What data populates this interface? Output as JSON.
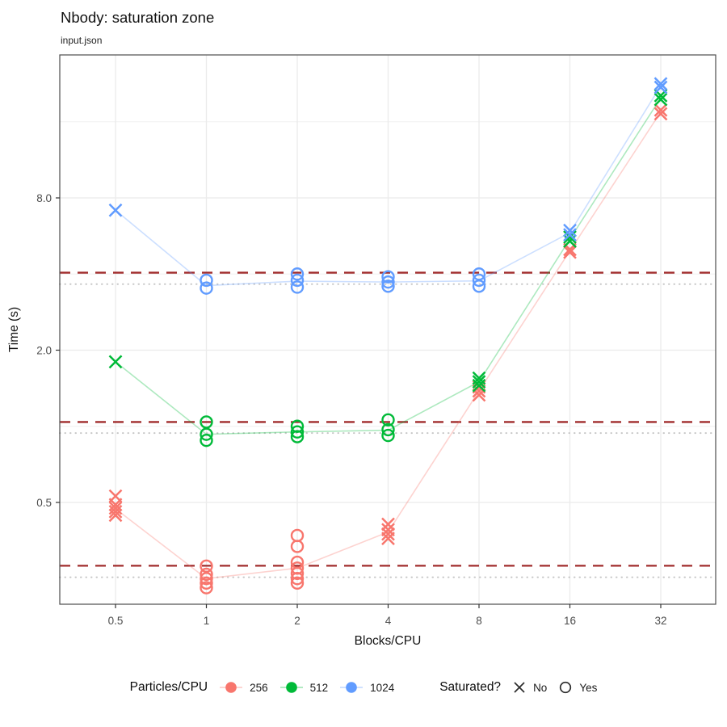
{
  "chart_data": {
    "type": "scatter",
    "title": "Nbody: saturation zone",
    "subtitle": "input.json",
    "xlabel": "Blocks/CPU",
    "ylabel": "Time (s)",
    "x_scale": "log2",
    "y_scale": "log2",
    "x_ticks": [
      0.5,
      1,
      2,
      4,
      8,
      16,
      32
    ],
    "x_tick_labels": [
      "0.5",
      "1",
      "2",
      "4",
      "8",
      "16",
      "32"
    ],
    "y_ticks": [
      0.5,
      2.0,
      8.0
    ],
    "y_tick_labels": [
      "0.5",
      "2.0",
      "8.0"
    ],
    "y_minor_gridlines": [
      1,
      4,
      16
    ],
    "grid": "on",
    "legend_position": "bottom",
    "hlines_dashed": {
      "color": "#A02C2C",
      "values": [
        4.05,
        1.04,
        0.281
      ],
      "meaning": "saturation time per particle count"
    },
    "hlines_dotted": {
      "color": "#C6C6C6",
      "values": [
        3.65,
        0.94,
        0.253
      ],
      "meaning": "90% of saturation time"
    },
    "series": [
      {
        "name": "256",
        "color": "#F8766D",
        "groups": [
          {
            "x": 0.5,
            "marker": "x",
            "values": [
              0.53,
              0.49,
              0.475,
              0.46,
              0.445
            ]
          },
          {
            "x": 1,
            "marker": "o",
            "values": [
              0.28,
              0.26,
              0.25,
              0.24,
              0.23
            ]
          },
          {
            "x": 2,
            "marker": "o",
            "values": [
              0.37,
              0.335,
              0.29,
              0.275,
              0.262,
              0.25,
              0.24
            ]
          },
          {
            "x": 4,
            "marker": "x",
            "values": [
              0.41,
              0.39,
              0.375,
              0.36
            ]
          },
          {
            "x": 8,
            "marker": "x",
            "values": [
              1.43,
              1.38,
              1.33
            ]
          },
          {
            "x": 16,
            "marker": "x",
            "values": [
              5.0,
              4.88
            ]
          },
          {
            "x": 32,
            "marker": "x",
            "values": [
              17.8,
              17.2
            ]
          }
        ],
        "median_line": [
          [
            0.5,
            0.472
          ],
          [
            1,
            0.25
          ],
          [
            2,
            0.275
          ],
          [
            4,
            0.382
          ],
          [
            8,
            1.38
          ],
          [
            16,
            4.94
          ],
          [
            32,
            17.5
          ]
        ]
      },
      {
        "name": "512",
        "color": "#00BA38",
        "groups": [
          {
            "x": 0.5,
            "marker": "x",
            "values": [
              1.8
            ]
          },
          {
            "x": 1,
            "marker": "o",
            "values": [
              1.04,
              0.93,
              0.88
            ]
          },
          {
            "x": 2,
            "marker": "o",
            "values": [
              1.0,
              0.95,
              0.91
            ]
          },
          {
            "x": 4,
            "marker": "o",
            "values": [
              1.06,
              0.97,
              0.92
            ]
          },
          {
            "x": 8,
            "marker": "x",
            "values": [
              1.55,
              1.5,
              1.45
            ]
          },
          {
            "x": 16,
            "marker": "x",
            "values": [
              5.6,
              5.4
            ]
          },
          {
            "x": 32,
            "marker": "x",
            "values": [
              20.3,
              19.6
            ]
          }
        ],
        "median_line": [
          [
            0.5,
            1.8
          ],
          [
            1,
            0.93
          ],
          [
            2,
            0.95
          ],
          [
            4,
            0.965
          ],
          [
            8,
            1.5
          ],
          [
            16,
            5.5
          ],
          [
            32,
            19.9
          ]
        ]
      },
      {
        "name": "1024",
        "color": "#619CFF",
        "groups": [
          {
            "x": 0.5,
            "marker": "x",
            "values": [
              7.15
            ]
          },
          {
            "x": 1,
            "marker": "o",
            "values": [
              3.78,
              3.52
            ]
          },
          {
            "x": 2,
            "marker": "o",
            "values": [
              4.0,
              3.78,
              3.55
            ]
          },
          {
            "x": 4,
            "marker": "o",
            "values": [
              3.9,
              3.72,
              3.58
            ]
          },
          {
            "x": 8,
            "marker": "o",
            "values": [
              4.0,
              3.78,
              3.58
            ]
          },
          {
            "x": 16,
            "marker": "x",
            "values": [
              5.95,
              5.72
            ]
          },
          {
            "x": 32,
            "marker": "x",
            "values": [
              22.6,
              21.9
            ]
          }
        ],
        "median_line": [
          [
            0.5,
            7.15
          ],
          [
            1,
            3.6
          ],
          [
            2,
            3.75
          ],
          [
            4,
            3.72
          ],
          [
            8,
            3.76
          ],
          [
            16,
            5.83
          ],
          [
            32,
            22.2
          ]
        ]
      }
    ]
  },
  "legend": {
    "particles_label": "Particles/CPU",
    "items": [
      {
        "label": "256",
        "color": "#F8766D"
      },
      {
        "label": "512",
        "color": "#00BA38"
      },
      {
        "label": "1024",
        "color": "#619CFF"
      }
    ],
    "saturated_label": "Saturated?",
    "no_label": "No",
    "yes_label": "Yes"
  },
  "style_colors": {
    "panel_border": "#4D4D4D",
    "major_grid": "#EBEBEB",
    "minor_grid": "#F0F0F0",
    "tick_text": "#4D4D4D",
    "axis_title": "#141414"
  }
}
